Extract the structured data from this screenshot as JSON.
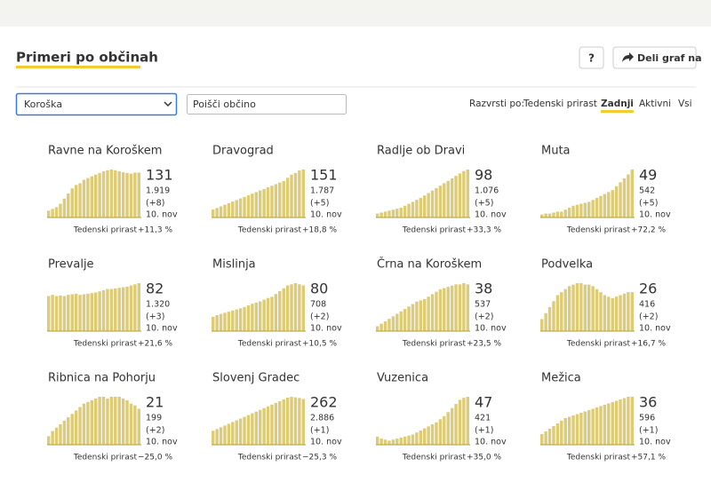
{
  "header": {
    "title": "Primeri po občinah",
    "help": "?",
    "share": "Deli graf na"
  },
  "controls": {
    "region": "Koroška",
    "search_placeholder": "Poišči občino",
    "sort_label": "Razvrsti po:",
    "sort_options": [
      "Tedenski prirast",
      "Zadnji",
      "Aktivni",
      "Vsi"
    ],
    "sort_active": 1
  },
  "cards": [
    {
      "name": "Ravne na Koroškem",
      "active": "131",
      "total": "1.919",
      "change": "(+8)",
      "date": "10. nov",
      "growth_label": "Tedenski prirast",
      "growth": "+11,3 %",
      "trend": "up",
      "bars": [
        20,
        25,
        30,
        40,
        55,
        70,
        85,
        95,
        100,
        110,
        115,
        120,
        125,
        130,
        135,
        138,
        140,
        138,
        135,
        132,
        130,
        128,
        131,
        131
      ]
    },
    {
      "name": "Dravograd",
      "active": "151",
      "total": "1.787",
      "change": "(+5)",
      "date": "10. nov",
      "growth_label": "Tedenski prirast",
      "growth": "+18,8 %",
      "trend": "up",
      "bars": [
        25,
        30,
        35,
        40,
        45,
        50,
        55,
        60,
        65,
        70,
        75,
        80,
        85,
        90,
        95,
        100,
        105,
        110,
        115,
        125,
        135,
        140,
        148,
        151
      ]
    },
    {
      "name": "Radlje ob Dravi",
      "active": "98",
      "total": "1.076",
      "change": "(+5)",
      "date": "10. nov",
      "growth_label": "Tedenski prirast",
      "growth": "+33,3 %",
      "trend": "up",
      "bars": [
        8,
        10,
        12,
        14,
        16,
        18,
        20,
        24,
        28,
        32,
        36,
        40,
        45,
        50,
        55,
        60,
        65,
        70,
        75,
        80,
        85,
        90,
        95,
        98
      ]
    },
    {
      "name": "Muta",
      "active": "49",
      "total": "542",
      "change": "(+5)",
      "date": "10. nov",
      "growth_label": "Tedenski prirast",
      "growth": "+72,2 %",
      "trend": "up",
      "bars": [
        3,
        4,
        4,
        5,
        6,
        6,
        8,
        10,
        12,
        13,
        14,
        15,
        16,
        18,
        20,
        22,
        24,
        26,
        28,
        32,
        36,
        40,
        44,
        49
      ]
    },
    {
      "name": "Prevalje",
      "active": "82",
      "total": "1.320",
      "change": "(+3)",
      "date": "10. nov",
      "growth_label": "Tedenski prirast",
      "growth": "+21,6 %",
      "trend": "up",
      "bars": [
        60,
        62,
        60,
        61,
        60,
        62,
        63,
        64,
        62,
        63,
        64,
        65,
        66,
        68,
        70,
        72,
        72,
        73,
        74,
        75,
        76,
        78,
        80,
        82
      ]
    },
    {
      "name": "Mislinja",
      "active": "80",
      "total": "708",
      "change": "(+2)",
      "date": "10. nov",
      "growth_label": "Tedenski prirast",
      "growth": "+10,5 %",
      "trend": "up",
      "bars": [
        25,
        28,
        30,
        32,
        34,
        36,
        38,
        40,
        42,
        45,
        48,
        50,
        52,
        55,
        58,
        60,
        65,
        70,
        75,
        80,
        82,
        84,
        82,
        80
      ]
    },
    {
      "name": "Črna na Koroškem",
      "active": "38",
      "total": "537",
      "change": "(+2)",
      "date": "10. nov",
      "growth_label": "Tedenski prirast",
      "growth": "+23,5 %",
      "trend": "up",
      "bars": [
        4,
        6,
        8,
        10,
        12,
        14,
        16,
        18,
        20,
        22,
        24,
        25,
        26,
        28,
        30,
        32,
        34,
        35,
        36,
        37,
        38,
        38,
        39,
        38
      ]
    },
    {
      "name": "Podvelka",
      "active": "26",
      "total": "416",
      "change": "(+2)",
      "date": "10. nov",
      "growth_label": "Tedenski prirast",
      "growth": "+16,7 %",
      "trend": "up",
      "bars": [
        8,
        12,
        16,
        20,
        24,
        26,
        28,
        30,
        31,
        32,
        32,
        31,
        31,
        30,
        28,
        26,
        24,
        23,
        22,
        23,
        24,
        25,
        26,
        26
      ]
    },
    {
      "name": "Ribnica na Pohorju",
      "active": "21",
      "total": "199",
      "change": "(+2)",
      "date": "10. nov",
      "growth_label": "Tedenski prirast",
      "growth": "−25,0 %",
      "trend": "down",
      "bars": [
        5,
        8,
        10,
        12,
        14,
        16,
        18,
        20,
        22,
        24,
        25,
        26,
        27,
        28,
        28,
        27,
        28,
        28,
        28,
        27,
        26,
        24,
        23,
        21
      ]
    },
    {
      "name": "Slovenj Gradec",
      "active": "262",
      "total": "2.886",
      "change": "(+1)",
      "date": "10. nov",
      "growth_label": "Tedenski prirast",
      "growth": "−25,3 %",
      "trend": "down",
      "bars": [
        80,
        90,
        100,
        110,
        120,
        130,
        140,
        150,
        160,
        170,
        180,
        190,
        200,
        210,
        220,
        230,
        240,
        250,
        260,
        270,
        275,
        272,
        268,
        262
      ]
    },
    {
      "name": "Vuzenica",
      "active": "47",
      "total": "421",
      "change": "(+1)",
      "date": "10. nov",
      "growth_label": "Tedenski prirast",
      "growth": "+35,0 %",
      "trend": "up",
      "bars": [
        8,
        6,
        5,
        4,
        5,
        6,
        7,
        8,
        9,
        10,
        12,
        14,
        16,
        18,
        20,
        22,
        25,
        28,
        32,
        36,
        40,
        44,
        46,
        47
      ]
    },
    {
      "name": "Mežica",
      "active": "36",
      "total": "596",
      "change": "(+1)",
      "date": "10. nov",
      "growth_label": "Tedenski prirast",
      "growth": "+57,1 %",
      "trend": "up",
      "bars": [
        8,
        10,
        12,
        14,
        16,
        18,
        20,
        21,
        22,
        23,
        24,
        25,
        26,
        27,
        28,
        29,
        30,
        31,
        32,
        33,
        34,
        35,
        36,
        36
      ]
    }
  ]
}
